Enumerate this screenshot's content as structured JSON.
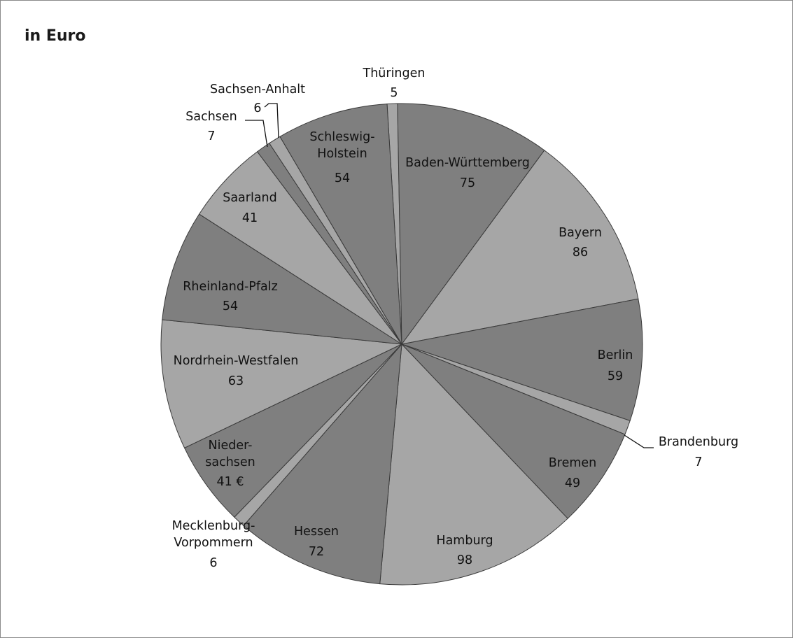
{
  "chart_title": "in Euro",
  "chart_data": {
    "type": "pie",
    "title": "in Euro",
    "slices": [
      {
        "name": "Thüringen",
        "value": 5,
        "value_label": "5",
        "color": "#a6a6a6"
      },
      {
        "name": "Baden-Württemberg",
        "value": 75,
        "value_label": "75",
        "color": "#7f7f7f"
      },
      {
        "name": "Bayern",
        "value": 86,
        "value_label": "86",
        "color": "#a6a6a6"
      },
      {
        "name": "Berlin",
        "value": 59,
        "value_label": "59",
        "color": "#7f7f7f"
      },
      {
        "name": "Brandenburg",
        "value": 7,
        "value_label": "7",
        "color": "#a6a6a6"
      },
      {
        "name": "Bremen",
        "value": 49,
        "value_label": "49",
        "color": "#7f7f7f"
      },
      {
        "name": "Hamburg",
        "value": 98,
        "value_label": "98",
        "color": "#a6a6a6"
      },
      {
        "name": "Hessen",
        "value": 72,
        "value_label": "72",
        "color": "#7f7f7f"
      },
      {
        "name": "Mecklenburg-Vorpommern",
        "value": 6,
        "value_label": "6",
        "color": "#a6a6a6"
      },
      {
        "name": "Nieder-sachsen",
        "value": 41,
        "value_label": "41 €",
        "color": "#7f7f7f"
      },
      {
        "name": "Nordrhein-Westfalen",
        "value": 63,
        "value_label": "63",
        "color": "#a6a6a6"
      },
      {
        "name": "Rheinland-Pfalz",
        "value": 54,
        "value_label": "54",
        "color": "#7f7f7f"
      },
      {
        "name": "Saarland",
        "value": 41,
        "value_label": "41",
        "color": "#a6a6a6"
      },
      {
        "name": "Sachsen",
        "value": 7,
        "value_label": "7",
        "color": "#7f7f7f"
      },
      {
        "name": "Sachsen-Anhalt",
        "value": 6,
        "value_label": "6",
        "color": "#a6a6a6"
      },
      {
        "name": "Schleswig-Holstein",
        "value": 54,
        "value_label": "54",
        "color": "#7f7f7f"
      }
    ]
  }
}
